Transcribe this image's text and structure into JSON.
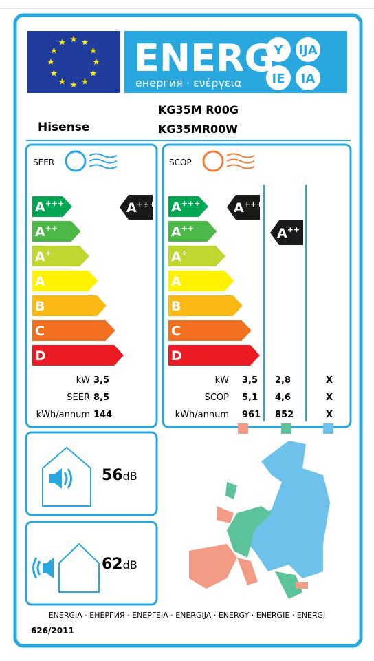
{
  "header": {
    "energy": "ENERG",
    "subtitle": "енергия · ενέργεια",
    "languages": [
      "Y",
      "IJA",
      "IE",
      "IA"
    ]
  },
  "brand": "Hisense",
  "models": [
    "KG35M R00G",
    "KG35MR00W"
  ],
  "energy_classes": [
    {
      "base": "A",
      "sup": "+++"
    },
    {
      "base": "A",
      "sup": "++"
    },
    {
      "base": "A",
      "sup": "+"
    },
    {
      "base": "A"
    },
    {
      "base": "B"
    },
    {
      "base": "C"
    },
    {
      "base": "D"
    }
  ],
  "seer": {
    "label": "SEER",
    "rating": {
      "base": "A",
      "sup": "+++"
    },
    "rows": [
      {
        "label": "kW",
        "value": "3,5"
      },
      {
        "label": "SEER",
        "value": "8,5"
      },
      {
        "label": "kWh/annum",
        "value": "144"
      }
    ]
  },
  "scop": {
    "label": "SCOP",
    "ratings": [
      {
        "base": "A",
        "sup": "+++"
      },
      {
        "base": "A",
        "sup": "++"
      }
    ],
    "rows": [
      {
        "label": "kW",
        "values": [
          "3,5",
          "2,8",
          "X"
        ]
      },
      {
        "label": "SCOP",
        "values": [
          "5,1",
          "4,6",
          "X"
        ]
      },
      {
        "label": "kWh/annum",
        "values": [
          "961",
          "852",
          "X"
        ]
      }
    ]
  },
  "noise_indoor": {
    "value": "56",
    "unit": "dB"
  },
  "noise_outdoor": {
    "value": "62",
    "unit": "dB"
  },
  "footer": {
    "languages": "ENERGIA · ЕНЕРГИЯ · ΕΝΕΡΓΕΙΑ · ENERGIJA · ENERGY · ENERGIE · ENERGI",
    "regulation": "626/2011"
  }
}
